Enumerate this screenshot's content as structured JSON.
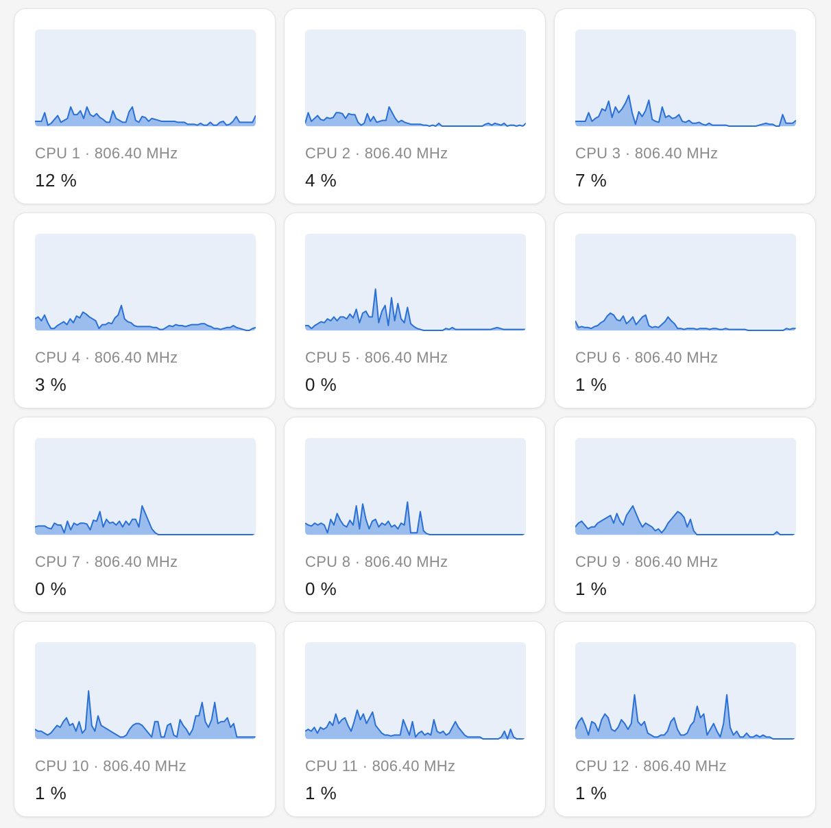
{
  "colors": {
    "line": "#2a6fd4",
    "fill": "#9bbdee",
    "chart_background": "#e8eff9",
    "card_background": "#ffffff",
    "page_background": "#f5f5f5",
    "label_text": "#8a8a8a",
    "value_text": "#1e1e1e"
  },
  "cpus": [
    {
      "label": "CPU 1 · 806.40 MHz",
      "usage": "12 %",
      "history": [
        5,
        5,
        5,
        14,
        1,
        3,
        7,
        11,
        4,
        6,
        8,
        20,
        12,
        12,
        16,
        8,
        20,
        12,
        10,
        13,
        9,
        7,
        4,
        4,
        16,
        8,
        6,
        4,
        4,
        15,
        20,
        6,
        4,
        10,
        9,
        5,
        8,
        7,
        6,
        5,
        5,
        5,
        5,
        5,
        4,
        4,
        4,
        2,
        2,
        2,
        1,
        3,
        1,
        1,
        4,
        1,
        1,
        4,
        5,
        1,
        2,
        5,
        10,
        4,
        4,
        4,
        4,
        4,
        11
      ]
    },
    {
      "label": "CPU 2 · 806.40 MHz",
      "usage": "4 %",
      "history": [
        3,
        14,
        5,
        8,
        11,
        7,
        6,
        9,
        8,
        9,
        14,
        14,
        13,
        8,
        13,
        12,
        12,
        4,
        1,
        3,
        13,
        5,
        10,
        4,
        5,
        6,
        6,
        20,
        14,
        8,
        4,
        6,
        4,
        3,
        2,
        2,
        2,
        2,
        1,
        1,
        0,
        1,
        0,
        3,
        0,
        0,
        0,
        0,
        0,
        0,
        0,
        0,
        0,
        0,
        0,
        0,
        0,
        0,
        2,
        3,
        1,
        3,
        2,
        1,
        3,
        0,
        1,
        1,
        0,
        1,
        0,
        3
      ]
    },
    {
      "label": "CPU 3 · 806.40 MHz",
      "usage": "7 %",
      "history": [
        5,
        5,
        5,
        5,
        14,
        5,
        8,
        10,
        18,
        16,
        26,
        9,
        20,
        14,
        18,
        24,
        32,
        14,
        2,
        15,
        10,
        16,
        27,
        7,
        5,
        4,
        20,
        9,
        11,
        8,
        9,
        12,
        5,
        4,
        6,
        3,
        3,
        4,
        2,
        1,
        3,
        1,
        1,
        1,
        1,
        1,
        0,
        0,
        0,
        0,
        0,
        0,
        0,
        0,
        0,
        1,
        2,
        3,
        2,
        2,
        0,
        0,
        12,
        3,
        3,
        3,
        6
      ]
    },
    {
      "label": "CPU 4 · 806.40 MHz",
      "usage": "3 %",
      "history": [
        12,
        14,
        10,
        16,
        8,
        2,
        2,
        5,
        7,
        9,
        6,
        12,
        8,
        15,
        13,
        19,
        17,
        14,
        12,
        10,
        2,
        6,
        6,
        8,
        7,
        13,
        16,
        26,
        12,
        9,
        8,
        5,
        4,
        4,
        4,
        4,
        4,
        3,
        3,
        1,
        1,
        3,
        5,
        4,
        6,
        5,
        5,
        4,
        5,
        6,
        6,
        6,
        7,
        7,
        5,
        4,
        2,
        2,
        1,
        2,
        3,
        3,
        5,
        3,
        2,
        1,
        0,
        0,
        2,
        3
      ]
    },
    {
      "label": "CPU 5 · 806.40 MHz",
      "usage": "0 %",
      "history": [
        5,
        5,
        2,
        5,
        7,
        9,
        8,
        12,
        10,
        14,
        10,
        14,
        14,
        12,
        17,
        13,
        22,
        8,
        18,
        20,
        14,
        14,
        43,
        8,
        20,
        26,
        5,
        34,
        10,
        28,
        12,
        8,
        24,
        7,
        4,
        2,
        1,
        0,
        0,
        0,
        0,
        0,
        0,
        0,
        2,
        1,
        3,
        1,
        1,
        1,
        1,
        1,
        1,
        1,
        1,
        1,
        1,
        1,
        1,
        2,
        3,
        2,
        1,
        1,
        1,
        1,
        1,
        1,
        1,
        1
      ]
    },
    {
      "label": "CPU 6 · 806.40 MHz",
      "usage": "1 %",
      "history": [
        10,
        3,
        4,
        3,
        3,
        2,
        4,
        5,
        8,
        10,
        15,
        18,
        16,
        11,
        10,
        15,
        7,
        10,
        14,
        6,
        10,
        14,
        16,
        5,
        3,
        4,
        3,
        6,
        9,
        14,
        10,
        7,
        2,
        2,
        1,
        2,
        2,
        2,
        1,
        2,
        2,
        2,
        1,
        2,
        2,
        1,
        1,
        2,
        1,
        1,
        1,
        1,
        1,
        1,
        0,
        0,
        0,
        0,
        0,
        0,
        0,
        0,
        0,
        0,
        0,
        0,
        2,
        1,
        2,
        2
      ]
    },
    {
      "label": "CPU 7 · 806.40 MHz",
      "usage": "0 %",
      "history": [
        8,
        9,
        9,
        9,
        7,
        6,
        12,
        10,
        10,
        2,
        14,
        5,
        12,
        10,
        12,
        12,
        11,
        5,
        15,
        14,
        24,
        8,
        16,
        12,
        13,
        10,
        14,
        8,
        14,
        10,
        16,
        16,
        8,
        30,
        22,
        14,
        6,
        2,
        0,
        0,
        0,
        0,
        0,
        0,
        0,
        0,
        0,
        0,
        0,
        0,
        0,
        0,
        0,
        0,
        0,
        0,
        0,
        0,
        0,
        0,
        0,
        0,
        0,
        0,
        0,
        0,
        0,
        0,
        0
      ]
    },
    {
      "label": "CPU 8 · 806.40 MHz",
      "usage": "0 %",
      "history": [
        12,
        10,
        9,
        12,
        10,
        12,
        10,
        2,
        16,
        10,
        22,
        15,
        10,
        8,
        15,
        10,
        30,
        6,
        32,
        16,
        6,
        14,
        16,
        8,
        12,
        10,
        14,
        8,
        10,
        6,
        12,
        10,
        34,
        2,
        2,
        2,
        24,
        4,
        1,
        0,
        0,
        0,
        0,
        0,
        0,
        0,
        0,
        0,
        0,
        0,
        0,
        0,
        0,
        0,
        0,
        0,
        0,
        0,
        0,
        0,
        0,
        0,
        0,
        0,
        0,
        0,
        0,
        0,
        0,
        0
      ]
    },
    {
      "label": "CPU 9 · 806.40 MHz",
      "usage": "1 %",
      "history": [
        8,
        12,
        14,
        10,
        6,
        8,
        8,
        12,
        14,
        16,
        18,
        20,
        12,
        22,
        14,
        10,
        20,
        25,
        30,
        22,
        14,
        8,
        12,
        10,
        8,
        4,
        6,
        2,
        6,
        12,
        16,
        20,
        24,
        22,
        18,
        8,
        16,
        4,
        0,
        0,
        0,
        0,
        0,
        0,
        0,
        0,
        0,
        0,
        0,
        0,
        0,
        0,
        0,
        0,
        0,
        0,
        0,
        0,
        0,
        0,
        0,
        0,
        0,
        3,
        0,
        0,
        0,
        0,
        0,
        0
      ]
    },
    {
      "label": "CPU 10 · 806.40 MHz",
      "usage": "1 %",
      "history": [
        10,
        8,
        8,
        6,
        4,
        6,
        10,
        14,
        12,
        18,
        22,
        14,
        16,
        8,
        18,
        6,
        10,
        50,
        14,
        8,
        24,
        14,
        12,
        10,
        8,
        6,
        4,
        2,
        2,
        4,
        10,
        14,
        16,
        16,
        14,
        10,
        6,
        2,
        18,
        18,
        2,
        2,
        14,
        16,
        4,
        2,
        20,
        14,
        10,
        4,
        10,
        24,
        24,
        38,
        18,
        12,
        20,
        38,
        16,
        18,
        18,
        22,
        12,
        16,
        2,
        2,
        2,
        2,
        2,
        2,
        2
      ]
    },
    {
      "label": "CPU 11 · 806.40 MHz",
      "usage": "1 %",
      "history": [
        8,
        10,
        8,
        12,
        6,
        12,
        10,
        12,
        18,
        14,
        26,
        16,
        20,
        22,
        14,
        8,
        18,
        30,
        20,
        26,
        16,
        22,
        28,
        14,
        10,
        6,
        4,
        4,
        3,
        4,
        4,
        4,
        20,
        12,
        4,
        18,
        2,
        6,
        8,
        4,
        6,
        4,
        20,
        8,
        6,
        8,
        4,
        6,
        12,
        18,
        12,
        8,
        4,
        2,
        2,
        2,
        2,
        2,
        0,
        0,
        0,
        0,
        0,
        0,
        2,
        8,
        0,
        10,
        2,
        0,
        0,
        0,
        0
      ]
    },
    {
      "label": "CPU 12 · 806.40 MHz",
      "usage": "1 %",
      "history": [
        10,
        18,
        22,
        14,
        4,
        18,
        16,
        8,
        20,
        26,
        22,
        10,
        8,
        12,
        20,
        16,
        10,
        16,
        46,
        18,
        14,
        18,
        6,
        4,
        2,
        2,
        4,
        4,
        8,
        18,
        22,
        10,
        4,
        4,
        6,
        14,
        18,
        34,
        22,
        26,
        4,
        10,
        16,
        8,
        2,
        16,
        46,
        12,
        4,
        8,
        2,
        2,
        6,
        2,
        2,
        4,
        2,
        4,
        2,
        2,
        0,
        0,
        0,
        0,
        0,
        0,
        0,
        0
      ]
    }
  ]
}
